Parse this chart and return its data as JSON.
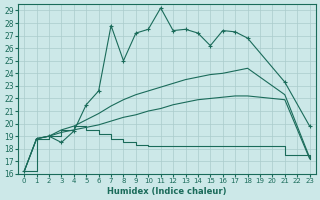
{
  "xlabel": "Humidex (Indice chaleur)",
  "bg_color": "#cce8e8",
  "line_color": "#1a6b5a",
  "grid_color": "#aacccc",
  "xlim": [
    -0.5,
    23.5
  ],
  "ylim": [
    16,
    29.5
  ],
  "xticks": [
    0,
    1,
    2,
    3,
    4,
    5,
    6,
    7,
    8,
    9,
    10,
    11,
    12,
    13,
    14,
    15,
    16,
    17,
    18,
    19,
    20,
    21,
    22,
    23
  ],
  "yticks": [
    16,
    17,
    18,
    19,
    20,
    21,
    22,
    23,
    24,
    25,
    26,
    27,
    28,
    29
  ],
  "line1_x": [
    0,
    1,
    2,
    3,
    4,
    5,
    6,
    7,
    8,
    9,
    10,
    11,
    12,
    13,
    14,
    15,
    16,
    17,
    18,
    21,
    23
  ],
  "line1_y": [
    16.2,
    18.8,
    19.0,
    18.5,
    19.4,
    21.5,
    22.6,
    27.8,
    25.0,
    27.2,
    27.5,
    29.2,
    27.4,
    27.5,
    27.2,
    26.2,
    27.4,
    27.3,
    26.8,
    23.3,
    19.8
  ],
  "line2_x": [
    0,
    1,
    2,
    3,
    4,
    5,
    6,
    7,
    8,
    9,
    10,
    11,
    12,
    13,
    14,
    15,
    16,
    17,
    18,
    21,
    23
  ],
  "line2_y": [
    16.2,
    18.8,
    19.0,
    19.5,
    19.8,
    20.3,
    20.8,
    21.4,
    21.9,
    22.3,
    22.6,
    22.9,
    23.2,
    23.5,
    23.7,
    23.9,
    24.0,
    24.2,
    24.4,
    22.3,
    17.3
  ],
  "line3_x": [
    0,
    1,
    2,
    3,
    4,
    5,
    6,
    7,
    8,
    9,
    10,
    11,
    12,
    13,
    14,
    15,
    16,
    17,
    18,
    21,
    23
  ],
  "line3_y": [
    16.2,
    18.8,
    19.0,
    19.5,
    19.8,
    19.5,
    19.2,
    18.8,
    18.5,
    18.3,
    18.2,
    18.2,
    18.2,
    18.2,
    18.2,
    18.2,
    18.2,
    18.2,
    18.2,
    17.5,
    17.2
  ],
  "line4_x": [
    0,
    1,
    2,
    3,
    4,
    5,
    6,
    7,
    8,
    9,
    10,
    11,
    12,
    13,
    14,
    15,
    16,
    17,
    18,
    21,
    23
  ],
  "line4_y": [
    16.2,
    18.8,
    19.0,
    19.3,
    19.5,
    19.7,
    19.9,
    20.2,
    20.5,
    20.7,
    21.0,
    21.2,
    21.5,
    21.7,
    21.9,
    22.0,
    22.1,
    22.2,
    22.2,
    21.9,
    17.2
  ]
}
